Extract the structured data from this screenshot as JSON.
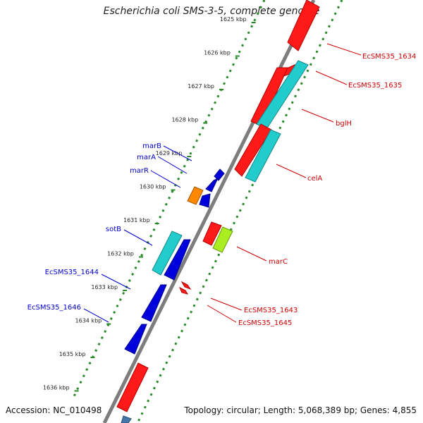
{
  "title": "Escherichia coli SMS-3-5, complete genome",
  "accession": "Accession: NC_010498",
  "topology": "Topology: circular; Length: 5,068,389 bp; Genes: 4,855",
  "colors": {
    "backbone": "#7a7a7a",
    "ruler": "#2a8a2a",
    "forward_strand_label": "#0000cc",
    "reverse_strand_label": "#cc0000",
    "red_gene": "#ff0000",
    "cyan_gene": "#22cccc",
    "blue_gene": "#0000dd",
    "orange_gene": "#ff8800",
    "lime_gene": "#aaee22",
    "steel_gene": "#4477aa"
  },
  "ruler_ticks": [
    "1625 kbp",
    "1626 kbp",
    "1627 kbp",
    "1628 kbp",
    "1629 kbp",
    "1630 kbp",
    "1631 kbp",
    "1632 kbp",
    "1633 kbp",
    "1634 kbp",
    "1635 kbp",
    "1636 kbp"
  ],
  "gene_labels": {
    "right": [
      "EcSMS35_1634",
      "EcSMS35_1635",
      "bglH",
      "celA",
      "marC",
      "EcSMS35_1643",
      "EcSMS35_1645"
    ],
    "left": [
      "marB",
      "marA",
      "marR",
      "sotB",
      "EcSMS35_1644",
      "EcSMS35_1646"
    ]
  }
}
